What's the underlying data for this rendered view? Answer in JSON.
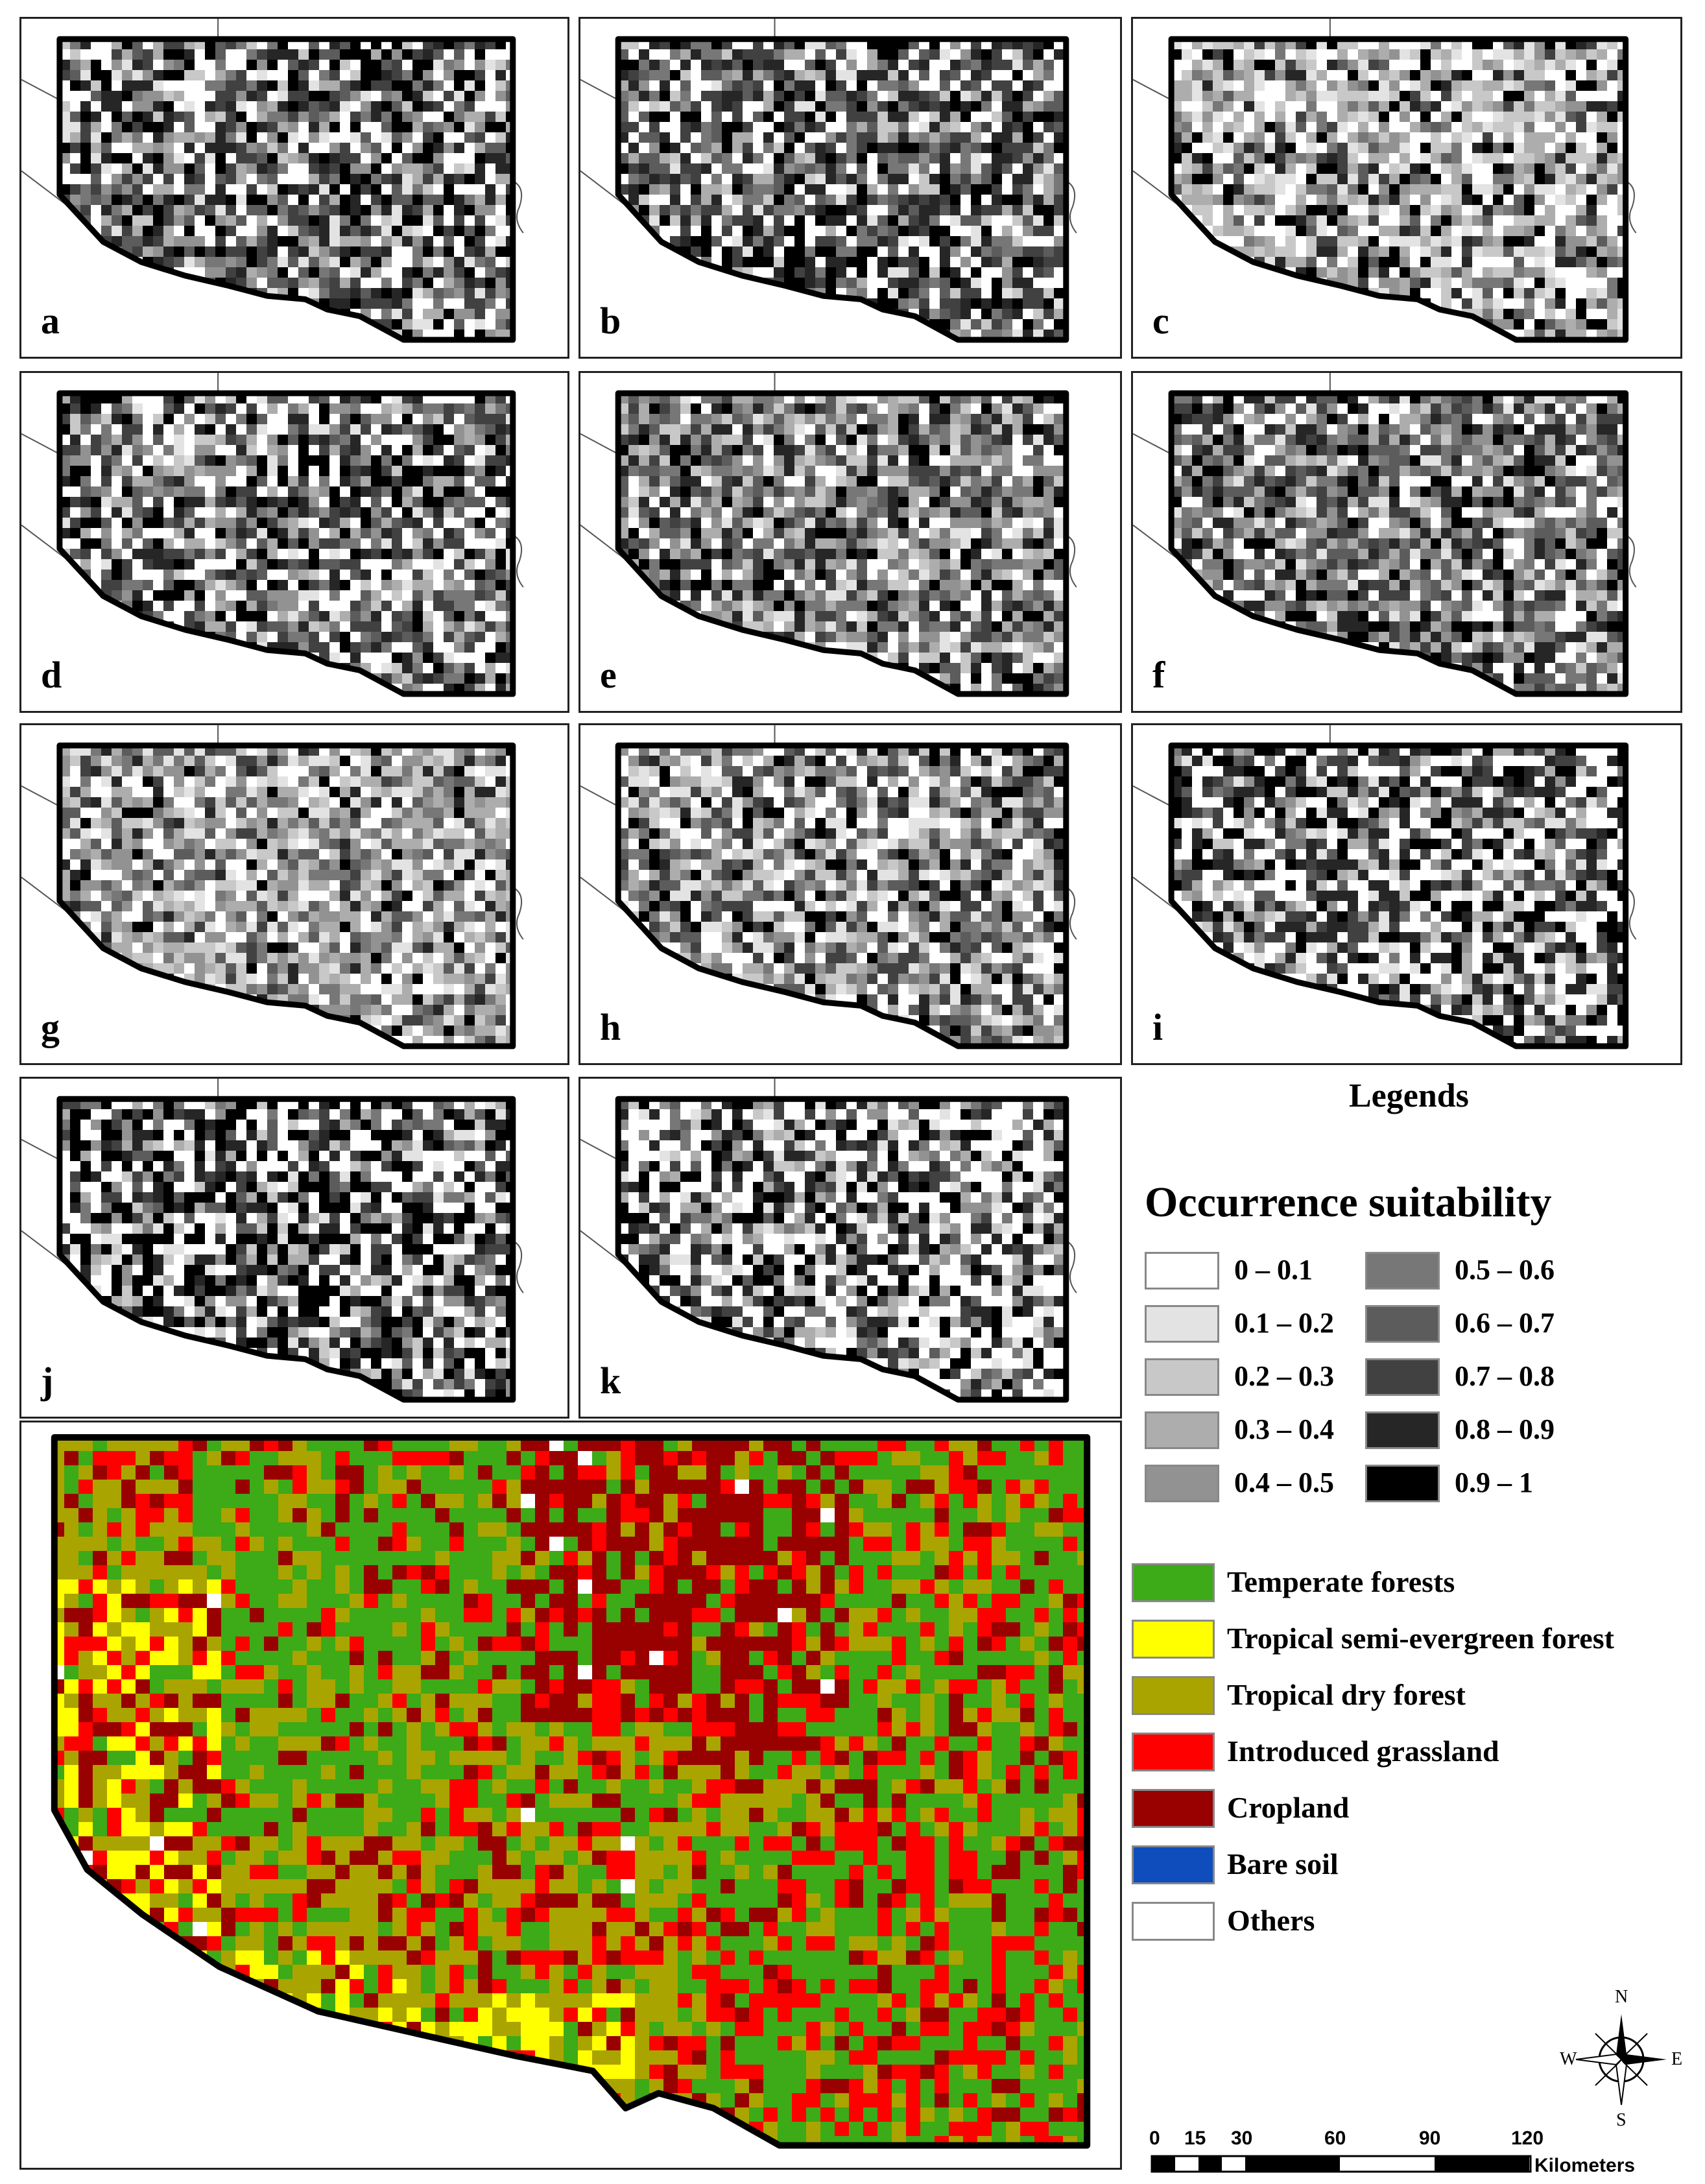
{
  "panels": [
    {
      "label": "a"
    },
    {
      "label": "b"
    },
    {
      "label": "c"
    },
    {
      "label": "d"
    },
    {
      "label": "e"
    },
    {
      "label": "f"
    },
    {
      "label": "g"
    },
    {
      "label": "h"
    },
    {
      "label": "i"
    },
    {
      "label": "j"
    },
    {
      "label": "k"
    }
  ],
  "legends_title": "Legends",
  "occurrence": {
    "title": "Occurrence suitability",
    "classes": [
      {
        "label": "0 – 0.1",
        "color": "#ffffff"
      },
      {
        "label": "0.1 – 0.2",
        "color": "#e3e3e3"
      },
      {
        "label": "0.2 – 0.3",
        "color": "#c8c8c8"
      },
      {
        "label": "0.3 – 0.4",
        "color": "#adadad"
      },
      {
        "label": "0.4 – 0.5",
        "color": "#929292"
      },
      {
        "label": "0.5 – 0.6",
        "color": "#777777"
      },
      {
        "label": "0.6 – 0.7",
        "color": "#5c5c5c"
      },
      {
        "label": "0.7 – 0.8",
        "color": "#414141"
      },
      {
        "label": "0.8 – 0.9",
        "color": "#262626"
      },
      {
        "label": "0.9 – 1",
        "color": "#000000"
      }
    ]
  },
  "landcover": {
    "classes": [
      {
        "label": "Temperate forests",
        "color": "#3daa17"
      },
      {
        "label": "Tropical semi-evergreen forest",
        "color": "#ffff00"
      },
      {
        "label": "Tropical dry forest",
        "color": "#aaa400"
      },
      {
        "label": "Introduced grassland",
        "color": "#ff0000"
      },
      {
        "label": "Cropland",
        "color": "#990000"
      },
      {
        "label": "Bare soil",
        "color": "#0e4dbb"
      },
      {
        "label": "Others",
        "color": "#ffffff"
      }
    ]
  },
  "scalebar": {
    "ticks": [
      "0",
      "15",
      "30",
      "60",
      "90",
      "120"
    ],
    "unit": "Kilometers"
  },
  "compass": {
    "n": "N",
    "s": "S",
    "e": "E",
    "w": "W"
  }
}
